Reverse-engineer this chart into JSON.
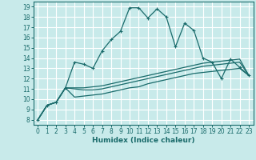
{
  "xlabel": "Humidex (Indice chaleur)",
  "bg_color": "#c8eaea",
  "grid_color": "#ffffff",
  "line_color": "#1a6b6b",
  "xlim": [
    -0.5,
    23.5
  ],
  "ylim": [
    7.5,
    19.5
  ],
  "xticks": [
    0,
    1,
    2,
    3,
    4,
    5,
    6,
    7,
    8,
    9,
    10,
    11,
    12,
    13,
    14,
    15,
    16,
    17,
    18,
    19,
    20,
    21,
    22,
    23
  ],
  "yticks": [
    8,
    9,
    10,
    11,
    12,
    13,
    14,
    15,
    16,
    17,
    18,
    19
  ],
  "line1_x": [
    0,
    1,
    2,
    3,
    4,
    5,
    6,
    7,
    8,
    9,
    10,
    11,
    12,
    13,
    14,
    15,
    16,
    17,
    18,
    19,
    20,
    21,
    22,
    23
  ],
  "line1_y": [
    8.0,
    9.4,
    9.7,
    11.1,
    13.6,
    13.4,
    13.0,
    14.7,
    15.8,
    16.6,
    18.9,
    18.9,
    17.9,
    18.8,
    18.0,
    15.1,
    17.4,
    16.7,
    14.0,
    13.6,
    12.0,
    13.9,
    13.1,
    12.3
  ],
  "line2_x": [
    0,
    1,
    2,
    3,
    4,
    5,
    6,
    7,
    8,
    9,
    10,
    11,
    12,
    13,
    14,
    15,
    16,
    17,
    18,
    19,
    20,
    21,
    22,
    23
  ],
  "line2_y": [
    8.0,
    9.4,
    9.7,
    11.1,
    11.1,
    11.1,
    11.2,
    11.3,
    11.5,
    11.7,
    11.9,
    12.1,
    12.3,
    12.5,
    12.7,
    12.9,
    13.1,
    13.3,
    13.5,
    13.6,
    13.7,
    13.8,
    13.9,
    12.3
  ],
  "line3_x": [
    0,
    1,
    2,
    3,
    4,
    5,
    6,
    7,
    8,
    9,
    10,
    11,
    12,
    13,
    14,
    15,
    16,
    17,
    18,
    19,
    20,
    21,
    22,
    23
  ],
  "line3_y": [
    8.0,
    9.4,
    9.7,
    11.1,
    11.0,
    10.9,
    10.9,
    11.0,
    11.2,
    11.4,
    11.6,
    11.8,
    12.0,
    12.2,
    12.4,
    12.6,
    12.8,
    13.0,
    13.2,
    13.3,
    13.4,
    13.5,
    13.6,
    12.3
  ],
  "line4_x": [
    0,
    1,
    2,
    3,
    4,
    5,
    6,
    7,
    8,
    9,
    10,
    11,
    12,
    13,
    14,
    15,
    16,
    17,
    18,
    19,
    20,
    21,
    22,
    23
  ],
  "line4_y": [
    8.0,
    9.4,
    9.7,
    11.1,
    10.2,
    10.3,
    10.4,
    10.5,
    10.7,
    10.9,
    11.1,
    11.2,
    11.5,
    11.7,
    11.9,
    12.1,
    12.3,
    12.5,
    12.6,
    12.7,
    12.8,
    12.9,
    13.0,
    12.3
  ]
}
